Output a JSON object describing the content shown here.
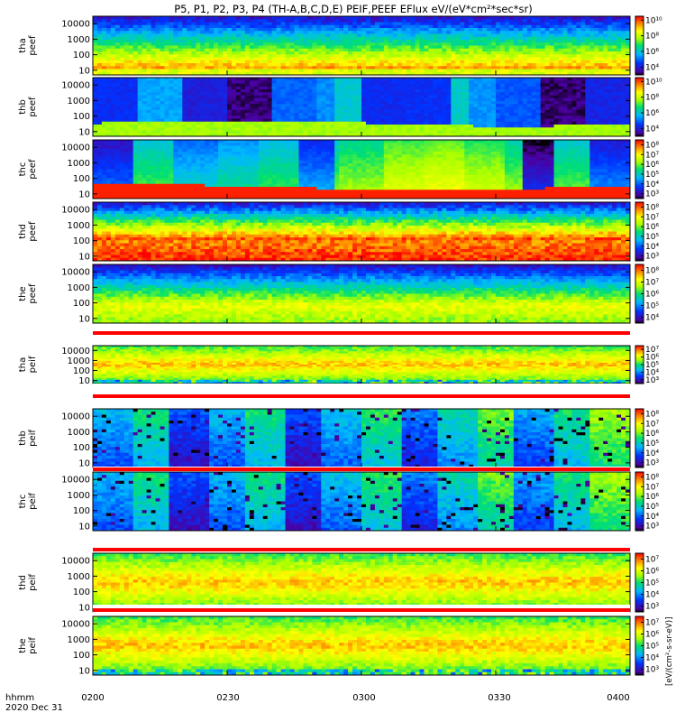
{
  "chart_data": {
    "type": "heatmap",
    "title": "P5, P1, P2, P3, P4 (TH-A,B,C,D,E) PEIF,PEEF EFlux eV/(eV*cm²*sec*sr)",
    "x_axis": {
      "range": [
        "0200",
        "0400"
      ],
      "ticks": [
        "0200",
        "0230",
        "0300",
        "0330",
        "0400"
      ],
      "label_top": "hhmm",
      "label_bottom": "2020 Dec 31"
    },
    "y_scale": "log",
    "y_ticks": [
      "10000",
      "1000",
      "100",
      "10"
    ],
    "colorbar_unit": "[eV/(cm²-s-sr-eV)]",
    "panels": [
      {
        "label1": "tha",
        "label2": "peef",
        "species": "electron",
        "ylim": [
          5,
          30000
        ],
        "cb_ticks": [
          "10¹⁰",
          "10⁸",
          "10⁶",
          "10⁴"
        ],
        "cb_range_exp": [
          3,
          10.5
        ]
      },
      {
        "label1": "thb",
        "label2": "peef",
        "species": "electron",
        "ylim": [
          5,
          30000
        ],
        "cb_ticks": [
          "10¹⁰",
          "10⁸",
          "10⁶",
          "10⁴"
        ],
        "cb_range_exp": [
          3,
          10.5
        ]
      },
      {
        "label1": "thc",
        "label2": "peef",
        "species": "electron",
        "ylim": [
          5,
          30000
        ],
        "cb_ticks": [
          "10⁸",
          "10⁷",
          "10⁶",
          "10⁵",
          "10⁴",
          "10³"
        ],
        "cb_range_exp": [
          2.5,
          8.5
        ]
      },
      {
        "label1": "thd",
        "label2": "peef",
        "species": "electron",
        "ylim": [
          5,
          30000
        ],
        "cb_ticks": [
          "10⁸",
          "10⁷",
          "10⁶",
          "10⁵",
          "10⁴",
          "10³"
        ],
        "cb_range_exp": [
          2.5,
          8.5
        ]
      },
      {
        "label1": "the",
        "label2": "peef",
        "species": "electron",
        "ylim": [
          5,
          30000
        ],
        "cb_ticks": [
          "10⁸",
          "10⁷",
          "10⁶",
          "10⁵",
          "10⁴"
        ],
        "cb_range_exp": [
          3.5,
          8.5
        ]
      },
      {
        "label1": "tha",
        "label2": "peif",
        "species": "ion",
        "ylim": [
          5,
          30000
        ],
        "cb_ticks": [
          "10⁷",
          "10⁶",
          "10⁵",
          "10⁴",
          "10³"
        ],
        "cb_range_exp": [
          2.5,
          7.5
        ]
      },
      {
        "label1": "thb",
        "label2": "peif",
        "species": "ion",
        "ylim": [
          5,
          30000
        ],
        "cb_ticks": [
          "10⁸",
          "10⁷",
          "10⁶",
          "10⁵",
          "10⁴",
          "10³"
        ],
        "cb_range_exp": [
          2.5,
          8.5
        ]
      },
      {
        "label1": "thc",
        "label2": "peif",
        "species": "ion",
        "ylim": [
          5,
          30000
        ],
        "cb_ticks": [
          "10⁸",
          "10⁷",
          "10⁶",
          "10⁵",
          "10⁴",
          "10³"
        ],
        "cb_range_exp": [
          2.5,
          8.5
        ]
      },
      {
        "label1": "thd",
        "label2": "peif",
        "species": "ion",
        "ylim": [
          5,
          30000
        ],
        "cb_ticks": [
          "10⁷",
          "10⁶",
          "10⁵",
          "10⁴",
          "10³"
        ],
        "cb_range_exp": [
          2.5,
          7.5
        ]
      },
      {
        "label1": "the",
        "label2": "peif",
        "species": "ion",
        "ylim": [
          5,
          30000
        ],
        "cb_ticks": [
          "10⁷",
          "10⁶",
          "10⁵",
          "10⁴",
          "10³"
        ],
        "cb_range_exp": [
          2.5,
          7.5
        ]
      }
    ]
  }
}
